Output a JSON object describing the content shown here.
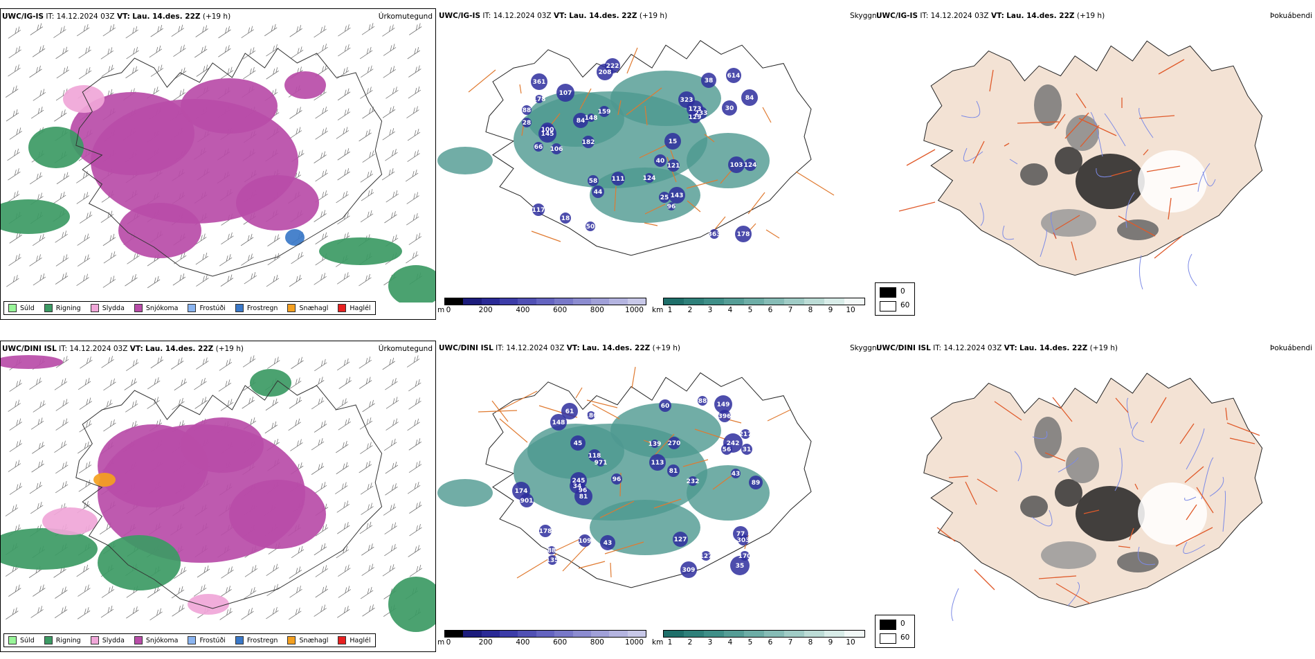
{
  "rows": [
    {
      "model": "UWC/IG-IS",
      "it_label": "IT:",
      "it": "14.12.2024 03Z",
      "vt_label": "VT:",
      "vt": "Lau. 14.des. 22Z",
      "lead": "(+19 h)",
      "precip_title": "Úrkomutegund",
      "cloud_title": "Skyggni",
      "fog_title": "Þokuábendi",
      "labels": [
        "361",
        "84",
        "107",
        "182",
        "15",
        "121",
        "173",
        "50",
        "363",
        "96",
        "18",
        "124",
        "84",
        "40",
        "58",
        "614",
        "323",
        "106",
        "129",
        "38",
        "233",
        "88",
        "66",
        "148",
        "178",
        "103",
        "117",
        "100",
        "111",
        "208",
        "222",
        "178",
        "159",
        "145",
        "143",
        "44",
        "25",
        "30",
        "124",
        "28"
      ]
    },
    {
      "model": "UWC/DINI ISL",
      "it_label": "IT:",
      "it": "14.12.2024 03Z",
      "vt_label": "VT:",
      "vt": "Lau. 14.des. 22Z",
      "lead": "(+19 h)",
      "precip_title": "Úrkomutegund",
      "cloud_title": "Skyggni",
      "fog_title": "Þokuábendi",
      "labels": [
        "148",
        "81",
        "242",
        "186",
        "971",
        "96",
        "303",
        "109",
        "170",
        "245",
        "309",
        "127",
        "113",
        "396",
        "43",
        "178",
        "89",
        "149",
        "88",
        "118",
        "127",
        "35",
        "135",
        "217",
        "270",
        "232",
        "139",
        "60",
        "45",
        "31",
        "901",
        "174",
        "81",
        "61",
        "96",
        "56",
        "43",
        "34",
        "77",
        "88"
      ]
    }
  ],
  "precip_legend": [
    {
      "label": "Súld",
      "color": "#98f598"
    },
    {
      "label": "Rigning",
      "color": "#3c9a64"
    },
    {
      "label": "Slydda",
      "color": "#f0a6d8"
    },
    {
      "label": "Snjókoma",
      "color": "#b84ca8"
    },
    {
      "label": "Frostúði",
      "color": "#8ab4f0"
    },
    {
      "label": "Frostregn",
      "color": "#3a78c8"
    },
    {
      "label": "Snæhagl",
      "color": "#f4a020"
    },
    {
      "label": "Haglél",
      "color": "#e82020"
    }
  ],
  "cloudbase_bar": {
    "unit": "m",
    "ticks": [
      "0",
      "200",
      "400",
      "600",
      "800",
      "1000"
    ],
    "colors": [
      "#000000",
      "#1c1c7c",
      "#2a2a96",
      "#3c3ca8",
      "#5050b4",
      "#6464c0",
      "#7878c8",
      "#8c8cd0",
      "#a0a0d8",
      "#b4b4e0",
      "#c8c8e8"
    ]
  },
  "vis_bar": {
    "unit": "km",
    "ticks": [
      "1",
      "2",
      "3",
      "4",
      "5",
      "6",
      "7",
      "8",
      "9",
      "10"
    ],
    "colors": [
      "#1f6f6a",
      "#2f807a",
      "#3f8f88",
      "#559d96",
      "#6dada6",
      "#86bcb6",
      "#a0ccc6",
      "#bcdcd6",
      "#d8ece8",
      "#f2f8f7"
    ]
  },
  "fog_key": [
    "0",
    "60"
  ],
  "map_colors": {
    "rain": "#3c9a64",
    "snow": "#b84ca8",
    "sleet": "#f0a6d8",
    "freezing_rain": "#3a78c8",
    "vis_teal": "#4d9990",
    "cloud_blue": "#2e2e9e",
    "roads": "#e07a30",
    "land": "#f3e2d4",
    "fog_roads": "#e05a2a",
    "rivers": "#7c8ae6"
  }
}
